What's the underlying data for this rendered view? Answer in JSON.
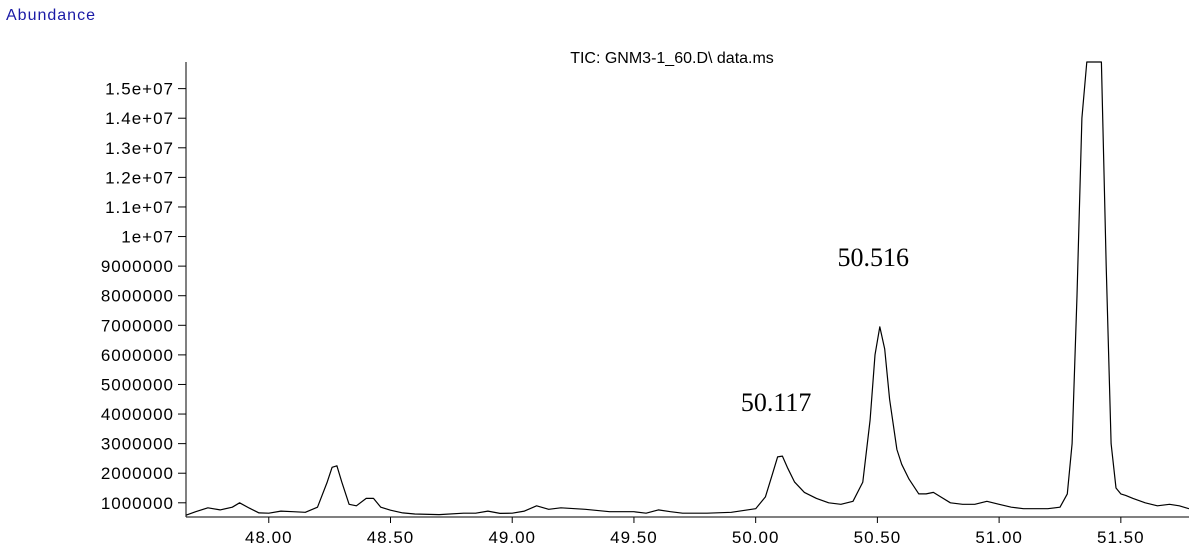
{
  "colors": {
    "ylabel": "#1a1aa6",
    "trace": "#000000",
    "axis": "#000000"
  },
  "chart_data": {
    "type": "line",
    "title": "TIC: GNM3-1_60.D\\ data.ms",
    "xlabel": "",
    "ylabel": "Abundance",
    "xlim": [
      47.66,
      51.78
    ],
    "ylim": [
      520000,
      15900000
    ],
    "grid": false,
    "legend": "none",
    "y_ticks": [
      1000000,
      2000000,
      3000000,
      4000000,
      5000000,
      6000000,
      7000000,
      8000000,
      9000000,
      10000000,
      11000000,
      12000000,
      13000000,
      14000000,
      15000000
    ],
    "y_tick_labels": [
      "1000000",
      "2000000",
      "3000000",
      "4000000",
      "5000000",
      "6000000",
      "7000000",
      "8000000",
      "9000000",
      "1e+07",
      "1.1e+07",
      "1.2e+07",
      "1.3e+07",
      "1.4e+07",
      "1.5e+07"
    ],
    "x_ticks": [
      48.0,
      48.5,
      49.0,
      49.5,
      50.0,
      50.5,
      51.0,
      51.5
    ],
    "x_tick_labels": [
      "48.00",
      "48.50",
      "49.00",
      "49.50",
      "50.00",
      "50.50",
      "51.00",
      "51.50"
    ],
    "annotations": [
      {
        "text": "50.117",
        "x": 50.117,
        "y": 4100000
      },
      {
        "text": "50.516",
        "x": 50.516,
        "y": 9000000
      }
    ],
    "series": [
      {
        "x": [
          47.66,
          47.7,
          47.75,
          47.8,
          47.85,
          47.88,
          47.92,
          47.96,
          48.0,
          48.05,
          48.1,
          48.15,
          48.2,
          48.24,
          48.26,
          48.28,
          48.3,
          48.33,
          48.36,
          48.4,
          48.43,
          48.46,
          48.5,
          48.55,
          48.6,
          48.7,
          48.8,
          48.85,
          48.9,
          48.95,
          49.0,
          49.05,
          49.1,
          49.15,
          49.2,
          49.3,
          49.4,
          49.5,
          49.55,
          49.6,
          49.65,
          49.7,
          49.8,
          49.9,
          50.0,
          50.04,
          50.07,
          50.09,
          50.11,
          50.13,
          50.16,
          50.2,
          50.25,
          50.3,
          50.35,
          50.4,
          50.44,
          50.47,
          50.49,
          50.51,
          50.53,
          50.55,
          50.58,
          50.6,
          50.63,
          50.67,
          50.7,
          50.73,
          50.76,
          50.8,
          50.85,
          50.9,
          50.95,
          51.0,
          51.05,
          51.1,
          51.15,
          51.2,
          51.25,
          51.28,
          51.3,
          51.32,
          51.34,
          51.36,
          51.42,
          51.44,
          51.46,
          51.48,
          51.5,
          51.52,
          51.55,
          51.6,
          51.65,
          51.7,
          51.74,
          51.78
        ],
        "y": [
          580000,
          700000,
          830000,
          760000,
          850000,
          1000000,
          820000,
          660000,
          650000,
          720000,
          700000,
          680000,
          850000,
          1700000,
          2200000,
          2250000,
          1700000,
          950000,
          900000,
          1150000,
          1150000,
          850000,
          750000,
          660000,
          620000,
          600000,
          650000,
          650000,
          720000,
          640000,
          650000,
          720000,
          900000,
          780000,
          830000,
          780000,
          700000,
          700000,
          650000,
          760000,
          700000,
          650000,
          650000,
          680000,
          800000,
          1200000,
          2000000,
          2550000,
          2580000,
          2200000,
          1700000,
          1350000,
          1150000,
          1000000,
          950000,
          1050000,
          1700000,
          3800000,
          6000000,
          6950000,
          6200000,
          4500000,
          2800000,
          2300000,
          1800000,
          1300000,
          1300000,
          1350000,
          1200000,
          1000000,
          950000,
          950000,
          1050000,
          950000,
          850000,
          800000,
          800000,
          800000,
          850000,
          1300000,
          3000000,
          8000000,
          14000000,
          15900000,
          15900000,
          9000000,
          3000000,
          1500000,
          1300000,
          1250000,
          1150000,
          1000000,
          900000,
          950000,
          900000,
          800000
        ]
      }
    ]
  }
}
